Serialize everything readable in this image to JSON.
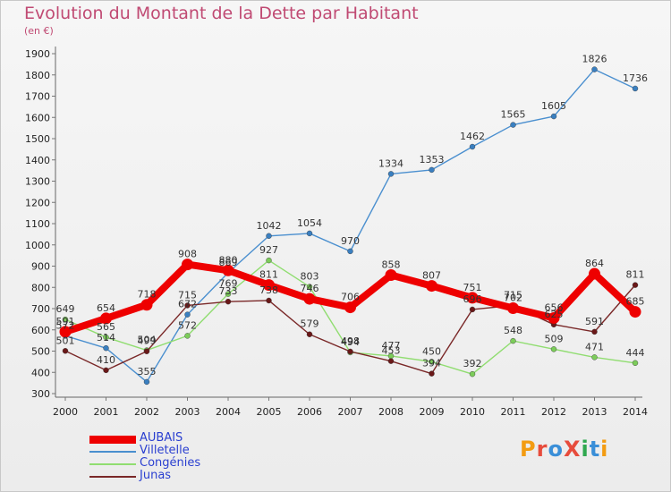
{
  "title": "Evolution du Montant de la Dette par Habitant",
  "subtitle": "(en €)",
  "logo": {
    "text": "ProXiti",
    "colors": [
      "#f39c12",
      "#e74c3c",
      "#3a8fd8",
      "#e74c3c",
      "#2fa84f",
      "#3a8fd8",
      "#f39c12"
    ]
  },
  "chart_data": {
    "type": "line",
    "x": [
      "2000",
      "2001",
      "2002",
      "2003",
      "2004",
      "2005",
      "2006",
      "2007",
      "2008",
      "2009",
      "2010",
      "2011",
      "2012",
      "2013",
      "2014"
    ],
    "y_ticks": [
      "300",
      "400",
      "500",
      "600",
      "700",
      "800",
      "900",
      "1000",
      "1100",
      "1200",
      "1300",
      "1400",
      "1500",
      "1600",
      "1700",
      "1800",
      "1900"
    ],
    "ylim": [
      300,
      1900
    ],
    "grid": false,
    "legend_position": "bottom-left",
    "series": [
      {
        "name": "Villetelle",
        "color": "#4a8fcf",
        "dot": "#3a7fc0",
        "values": [
          572,
          514,
          355,
          672,
          869,
          1042,
          1054,
          970,
          1334,
          1353,
          1462,
          1565,
          1605,
          1826,
          1736
        ]
      },
      {
        "name": "Congénies",
        "color": "#90dd70",
        "dot": "#7ccc5a",
        "values": [
          649,
          565,
          504,
          572,
          769,
          927,
          803,
          494,
          477,
          450,
          392,
          548,
          509,
          471,
          444
        ]
      },
      {
        "name": "Junas",
        "color": "#7a2828",
        "dot": "#6a1818",
        "values": [
          501,
          410,
          499,
          715,
          733,
          738,
          579,
          498,
          453,
          394,
          696,
          715,
          625,
          591,
          811
        ]
      },
      {
        "name": "AUBAIS",
        "color": "#ee0000",
        "dot": "#ee0000",
        "values": [
          591,
          654,
          718,
          908,
          880,
          811,
          746,
          706,
          858,
          807,
          751,
          702,
          656,
          864,
          685
        ]
      }
    ]
  }
}
